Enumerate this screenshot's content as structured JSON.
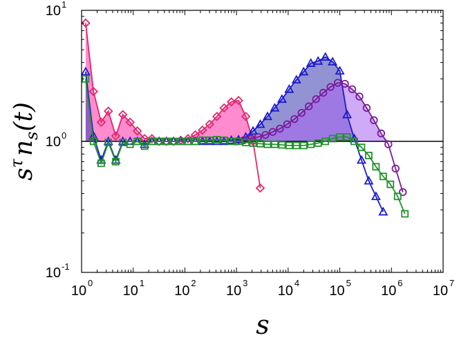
{
  "chart_data": {
    "type": "line",
    "xscale": "log",
    "yscale": "log",
    "xlim": [
      1,
      10000000
    ],
    "ylim": [
      0.1,
      10
    ],
    "xlabel": "s",
    "ylabel": "s^τ n_s(t)",
    "x_ticks": [
      {
        "base": "10",
        "exp": "0",
        "value": 1
      },
      {
        "base": "10",
        "exp": "1",
        "value": 10
      },
      {
        "base": "10",
        "exp": "2",
        "value": 100
      },
      {
        "base": "10",
        "exp": "3",
        "value": 1000
      },
      {
        "base": "10",
        "exp": "4",
        "value": 10000
      },
      {
        "base": "10",
        "exp": "5",
        "value": 100000
      },
      {
        "base": "10",
        "exp": "6",
        "value": 1000000
      },
      {
        "base": "10",
        "exp": "7",
        "value": 10000000
      }
    ],
    "y_ticks": [
      {
        "base": "10",
        "exp": "-1",
        "value": 0.1
      },
      {
        "base": "10",
        "exp": "0",
        "value": 1
      },
      {
        "base": "10",
        "exp": "1",
        "value": 10
      }
    ],
    "reference_line": {
      "y": 1.0,
      "color": "#000000"
    },
    "series": [
      {
        "color": "#e0266b",
        "fill": "#ff2da8",
        "marker": "diamond",
        "x": [
          1.2,
          1.7,
          2.4,
          3.3,
          4.6,
          6.3,
          8.7,
          12,
          16.6,
          23,
          31.7,
          43.8,
          60.4,
          83.3,
          115,
          159,
          219,
          302,
          417,
          575,
          794,
          1096,
          1513,
          2089,
          2884
        ],
        "y": [
          8.0,
          2.4,
          1.4,
          1.7,
          1.1,
          1.6,
          1.4,
          1.2,
          1.05,
          1.05,
          1.0,
          1.0,
          1.0,
          1.02,
          1.05,
          1.12,
          1.22,
          1.35,
          1.55,
          1.8,
          2.0,
          2.05,
          1.55,
          1.0,
          0.44
        ]
      },
      {
        "color": "#1a1acc",
        "fill": "#3a3ab0",
        "marker": "triangle",
        "x": [
          1.2,
          1.7,
          2.4,
          3.3,
          4.6,
          6.3,
          8.7,
          12,
          16.6,
          23,
          31.7,
          43.8,
          60.4,
          83.3,
          115,
          159,
          219,
          302,
          417,
          575,
          794,
          1096,
          1513,
          2089,
          2884,
          3981,
          5495,
          7586,
          10471,
          14454,
          19953,
          27542,
          38019,
          52481,
          72444,
          100000,
          138038,
          190546,
          263027,
          363078,
          501187,
          691831
        ],
        "y": [
          3.4,
          1.1,
          0.72,
          1.0,
          0.72,
          1.0,
          1.0,
          1.0,
          0.95,
          1.0,
          1.0,
          1.0,
          1.0,
          1.0,
          1.0,
          1.0,
          1.0,
          1.0,
          1.0,
          1.0,
          1.02,
          1.03,
          1.08,
          1.2,
          1.35,
          1.55,
          1.8,
          2.1,
          2.5,
          2.95,
          3.4,
          3.95,
          4.1,
          4.4,
          4.05,
          3.45,
          1.6,
          1.05,
          0.72,
          0.5,
          0.38,
          0.29
        ]
      },
      {
        "color": "#7a1a9a",
        "fill": "#a865ee",
        "marker": "circle",
        "x": [
          1000,
          1380,
          1905,
          2630,
          3631,
          5012,
          6918,
          9550,
          13183,
          18197,
          25119,
          34674,
          47863,
          66069,
          91201,
          125893,
          173780,
          239883,
          331131,
          457088,
          630957,
          870964,
          1202264,
          1659587
        ],
        "y": [
          1.0,
          1.02,
          1.05,
          1.08,
          1.12,
          1.18,
          1.25,
          1.35,
          1.48,
          1.65,
          1.85,
          2.1,
          2.35,
          2.6,
          2.8,
          2.75,
          2.5,
          2.2,
          1.8,
          1.45,
          1.15,
          0.95,
          0.62,
          0.41
        ]
      },
      {
        "color": "#21922b",
        "fill": "#21922b",
        "marker": "square",
        "x": [
          1.2,
          1.7,
          2.4,
          3.3,
          4.6,
          6.3,
          8.7,
          12,
          16.6,
          23,
          31.7,
          43.8,
          60.4,
          83.3,
          115,
          159,
          219,
          302,
          417,
          575,
          794,
          1096,
          1513,
          2089,
          2884,
          3981,
          5495,
          7586,
          10471,
          14454,
          19953,
          27542,
          38019,
          52481,
          72444,
          100000,
          138038,
          190546,
          263027,
          363078,
          501187,
          691831,
          954993,
          1318257,
          1819701
        ],
        "y": [
          3.0,
          1.0,
          0.68,
          0.98,
          0.7,
          0.98,
          0.95,
          1.0,
          0.92,
          1.0,
          1.0,
          1.0,
          1.0,
          1.0,
          1.0,
          1.0,
          1.02,
          1.02,
          1.03,
          1.02,
          1.0,
          1.0,
          0.98,
          0.97,
          0.96,
          0.95,
          0.95,
          0.94,
          0.93,
          0.93,
          0.93,
          0.95,
          0.97,
          1.0,
          1.05,
          1.08,
          1.08,
          1.0,
          0.9,
          0.78,
          0.64,
          0.54,
          0.47,
          0.38,
          0.28
        ]
      }
    ]
  }
}
